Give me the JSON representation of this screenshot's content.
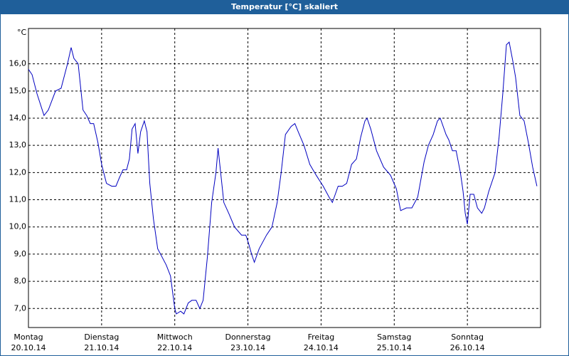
{
  "chart_data": {
    "type": "line",
    "title": "Temperatur [°C] skaliert",
    "y_unit": "°C",
    "xlim": [
      0,
      168
    ],
    "xticks": [
      {
        "value": 0,
        "label": "Montag"
      },
      {
        "value": 24,
        "label": "Dienstag"
      },
      {
        "value": 48,
        "label": "Mittwoch"
      },
      {
        "value": 72,
        "label": "Donnerstag"
      },
      {
        "value": 96,
        "label": "Freitag"
      },
      {
        "value": 120,
        "label": "Samstag"
      },
      {
        "value": 144,
        "label": "Sonntag"
      }
    ],
    "xtick_dates": [
      "20.10.14",
      "21.10.14",
      "22.10.14",
      "23.10.14",
      "24.10.14",
      "25.10.14",
      "26.10.14"
    ],
    "ylim": [
      6.3,
      17.3
    ],
    "yticks": [
      {
        "value": 7,
        "label": "7,0"
      },
      {
        "value": 8,
        "label": "8,0"
      },
      {
        "value": 9,
        "label": "9,0"
      },
      {
        "value": 10,
        "label": "10,0"
      },
      {
        "value": 11,
        "label": "11,0"
      },
      {
        "value": 12,
        "label": "12,0"
      },
      {
        "value": 13,
        "label": "13,0"
      },
      {
        "value": 14,
        "label": "14,0"
      },
      {
        "value": 15,
        "label": "15,0"
      },
      {
        "value": 16,
        "label": "16,0"
      }
    ],
    "grid": true,
    "x": [
      0,
      1.2,
      2.8,
      5.1,
      6.5,
      8.9,
      10.7,
      12.8,
      14.0,
      14.9,
      16.3,
      17.9,
      19.1,
      20.3,
      21.4,
      22.8,
      24.0,
      25.6,
      27.3,
      28.7,
      29.8,
      31.0,
      32.2,
      33.1,
      34.0,
      35.0,
      35.9,
      36.8,
      38.0,
      38.9,
      39.8,
      41.0,
      42.4,
      43.8,
      45.2,
      46.6,
      48.0,
      48.5,
      49.9,
      51.0,
      52.4,
      53.6,
      55.0,
      56.2,
      57.3,
      58.7,
      60.1,
      61.5,
      62.2,
      64.1,
      65.7,
      67.6,
      69.9,
      71.3,
      72.2,
      73.2,
      74.1,
      75.7,
      78.1,
      79.9,
      81.6,
      82.9,
      84.3,
      86.2,
      87.4,
      88.5,
      90.4,
      92.3,
      94.4,
      96.7,
      98.6,
      99.7,
      101.6,
      103.0,
      104.4,
      106.0,
      107.6,
      109.0,
      110.4,
      111.1,
      112.3,
      114.2,
      116.5,
      118.8,
      120.7,
      122.1,
      124.0,
      125.8,
      127.7,
      129.8,
      131.2,
      132.8,
      134.2,
      135.1,
      137.0,
      137.9,
      139.1,
      140.3,
      141.7,
      142.6,
      143.3,
      144.0,
      144.9,
      146.1,
      147.3,
      148.7,
      149.6,
      151.0,
      153.1,
      154.4,
      155.6,
      156.8,
      157.7,
      158.9,
      159.8,
      161.2,
      162.6,
      164.0,
      165.4,
      166.8
    ],
    "series": [
      {
        "name": "Temperatur",
        "color": "#0000c0",
        "values": [
          15.8,
          15.6,
          14.9,
          14.1,
          14.3,
          15.0,
          15.1,
          16.0,
          16.6,
          16.2,
          16.0,
          14.3,
          14.1,
          13.8,
          13.8,
          13.1,
          12.3,
          11.6,
          11.5,
          11.5,
          11.8,
          12.1,
          12.1,
          12.5,
          13.6,
          13.8,
          12.7,
          13.5,
          13.9,
          13.5,
          11.6,
          10.3,
          9.2,
          8.9,
          8.6,
          8.2,
          7.0,
          6.8,
          6.9,
          6.8,
          7.2,
          7.3,
          7.3,
          7.0,
          7.3,
          8.9,
          10.9,
          12.0,
          12.9,
          10.9,
          10.5,
          10.0,
          9.7,
          9.7,
          9.4,
          9.0,
          8.7,
          9.2,
          9.7,
          10.0,
          10.9,
          12.0,
          13.4,
          13.7,
          13.8,
          13.5,
          13.0,
          12.3,
          11.9,
          11.5,
          11.1,
          10.9,
          11.5,
          11.5,
          11.6,
          12.3,
          12.5,
          13.3,
          13.9,
          14.0,
          13.6,
          12.8,
          12.2,
          11.9,
          11.4,
          10.6,
          10.7,
          10.7,
          11.1,
          12.4,
          13.0,
          13.4,
          13.9,
          14.0,
          13.4,
          13.2,
          12.8,
          12.8,
          12.0,
          11.3,
          10.5,
          10.1,
          11.2,
          11.2,
          10.7,
          10.5,
          10.7,
          11.3,
          12.0,
          13.3,
          14.9,
          16.7,
          16.8,
          16.1,
          15.5,
          14.1,
          13.9,
          13.1,
          12.2,
          11.5
        ]
      }
    ]
  }
}
